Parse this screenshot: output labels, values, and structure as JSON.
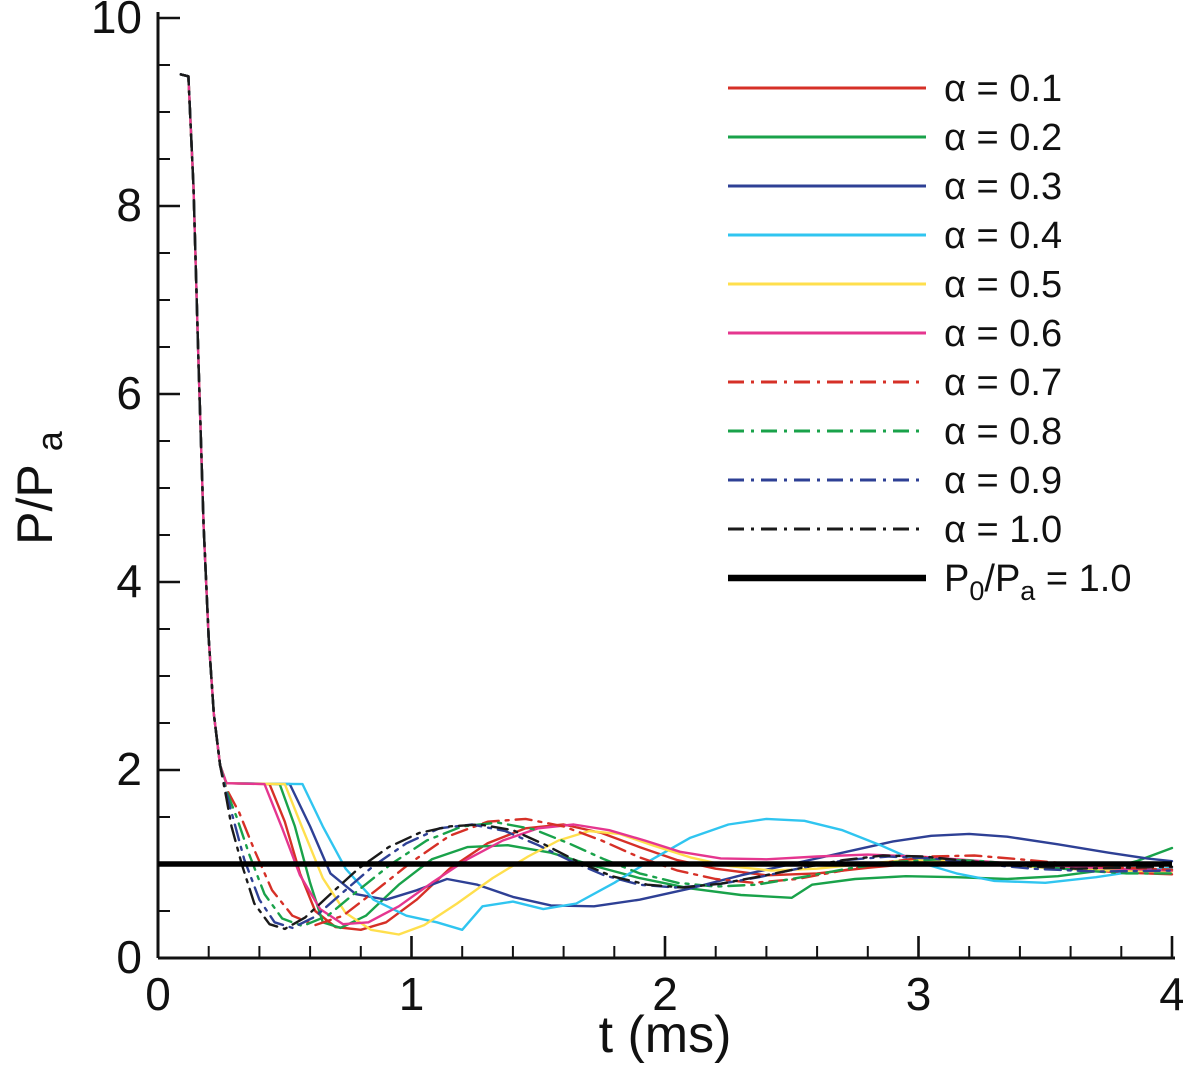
{
  "chart_data": {
    "type": "line",
    "xlabel": "t (ms)",
    "ylabel_main": "P/P",
    "ylabel_sub": "a",
    "xlim": [
      0,
      4
    ],
    "ylim": [
      0,
      10
    ],
    "xticks": [
      0,
      1,
      2,
      3,
      4
    ],
    "yticks": [
      0,
      2,
      4,
      6,
      8,
      10
    ],
    "x_minor_step": 0.2,
    "y_minor_step": 0.5,
    "grid": false,
    "legend_position": "top-right",
    "axis_color": "#111111",
    "initial_transient": [
      [
        0.09,
        9.4
      ],
      [
        0.12,
        9.38
      ],
      [
        0.14,
        8.2
      ],
      [
        0.16,
        6.3
      ],
      [
        0.18,
        4.6
      ],
      [
        0.2,
        3.4
      ],
      [
        0.22,
        2.6
      ],
      [
        0.245,
        2.05
      ]
    ],
    "series": [
      {
        "name": "α = 0.1",
        "color": "#d63027",
        "dash": false,
        "width": 2.4,
        "points": [
          [
            0.27,
            1.86
          ],
          [
            0.44,
            1.85
          ],
          [
            0.5,
            1.45
          ],
          [
            0.56,
            0.9
          ],
          [
            0.62,
            0.5
          ],
          [
            0.7,
            0.33
          ],
          [
            0.8,
            0.3
          ],
          [
            0.9,
            0.38
          ],
          [
            1.02,
            0.62
          ],
          [
            1.15,
            0.95
          ],
          [
            1.3,
            1.22
          ],
          [
            1.45,
            1.38
          ],
          [
            1.6,
            1.42
          ],
          [
            1.75,
            1.33
          ],
          [
            1.9,
            1.18
          ],
          [
            2.05,
            1.04
          ],
          [
            2.2,
            0.95
          ],
          [
            2.4,
            0.88
          ],
          [
            2.6,
            0.9
          ],
          [
            2.8,
            0.96
          ],
          [
            3.0,
            1.01
          ],
          [
            3.2,
            1.03
          ],
          [
            3.4,
            1.0
          ],
          [
            3.6,
            0.95
          ],
          [
            3.8,
            0.91
          ],
          [
            4.0,
            0.89
          ]
        ]
      },
      {
        "name": "α = 0.2",
        "color": "#19a24a",
        "dash": false,
        "width": 2.4,
        "points": [
          [
            0.27,
            1.86
          ],
          [
            0.48,
            1.85
          ],
          [
            0.54,
            1.4
          ],
          [
            0.6,
            0.8
          ],
          [
            0.65,
            0.38
          ],
          [
            0.72,
            0.32
          ],
          [
            0.82,
            0.45
          ],
          [
            0.95,
            0.78
          ],
          [
            1.08,
            1.05
          ],
          [
            1.22,
            1.18
          ],
          [
            1.38,
            1.2
          ],
          [
            1.55,
            1.12
          ],
          [
            1.72,
            0.98
          ],
          [
            1.9,
            0.85
          ],
          [
            2.1,
            0.74
          ],
          [
            2.3,
            0.67
          ],
          [
            2.5,
            0.64
          ],
          [
            2.58,
            0.78
          ],
          [
            2.75,
            0.84
          ],
          [
            2.95,
            0.87
          ],
          [
            3.15,
            0.86
          ],
          [
            3.35,
            0.84
          ],
          [
            3.55,
            0.87
          ],
          [
            3.72,
            0.93
          ],
          [
            3.86,
            1.03
          ],
          [
            4.0,
            1.17
          ]
        ]
      },
      {
        "name": "α = 0.3",
        "color": "#2e4095",
        "dash": false,
        "width": 2.4,
        "points": [
          [
            0.27,
            1.86
          ],
          [
            0.52,
            1.85
          ],
          [
            0.6,
            1.4
          ],
          [
            0.68,
            0.9
          ],
          [
            0.78,
            0.68
          ],
          [
            0.9,
            0.62
          ],
          [
            1.02,
            0.72
          ],
          [
            1.14,
            0.84
          ],
          [
            1.26,
            0.78
          ],
          [
            1.4,
            0.65
          ],
          [
            1.55,
            0.56
          ],
          [
            1.72,
            0.55
          ],
          [
            1.9,
            0.62
          ],
          [
            2.1,
            0.74
          ],
          [
            2.3,
            0.88
          ],
          [
            2.5,
            1.0
          ],
          [
            2.7,
            1.12
          ],
          [
            2.9,
            1.24
          ],
          [
            3.05,
            1.3
          ],
          [
            3.2,
            1.32
          ],
          [
            3.35,
            1.29
          ],
          [
            3.55,
            1.21
          ],
          [
            3.75,
            1.12
          ],
          [
            3.9,
            1.06
          ],
          [
            4.0,
            1.03
          ]
        ]
      },
      {
        "name": "α = 0.4",
        "color": "#30c5f0",
        "dash": false,
        "width": 2.4,
        "points": [
          [
            0.27,
            1.86
          ],
          [
            0.57,
            1.85
          ],
          [
            0.65,
            1.4
          ],
          [
            0.74,
            0.95
          ],
          [
            0.85,
            0.62
          ],
          [
            0.98,
            0.45
          ],
          [
            1.1,
            0.38
          ],
          [
            1.2,
            0.3
          ],
          [
            1.28,
            0.55
          ],
          [
            1.4,
            0.6
          ],
          [
            1.52,
            0.52
          ],
          [
            1.65,
            0.58
          ],
          [
            1.8,
            0.8
          ],
          [
            1.95,
            1.05
          ],
          [
            2.1,
            1.28
          ],
          [
            2.25,
            1.42
          ],
          [
            2.4,
            1.48
          ],
          [
            2.55,
            1.46
          ],
          [
            2.7,
            1.36
          ],
          [
            2.85,
            1.2
          ],
          [
            3.0,
            1.02
          ],
          [
            3.15,
            0.9
          ],
          [
            3.3,
            0.82
          ],
          [
            3.5,
            0.8
          ],
          [
            3.7,
            0.86
          ],
          [
            3.85,
            0.92
          ],
          [
            4.0,
            0.96
          ]
        ]
      },
      {
        "name": "α = 0.5",
        "color": "#ffdf4d",
        "dash": false,
        "width": 2.4,
        "points": [
          [
            0.27,
            1.86
          ],
          [
            0.5,
            1.85
          ],
          [
            0.57,
            1.38
          ],
          [
            0.65,
            0.85
          ],
          [
            0.74,
            0.48
          ],
          [
            0.84,
            0.3
          ],
          [
            0.95,
            0.25
          ],
          [
            1.05,
            0.35
          ],
          [
            1.18,
            0.58
          ],
          [
            1.32,
            0.85
          ],
          [
            1.46,
            1.08
          ],
          [
            1.58,
            1.25
          ],
          [
            1.7,
            1.35
          ],
          [
            1.82,
            1.32
          ],
          [
            1.95,
            1.2
          ],
          [
            2.1,
            1.07
          ],
          [
            2.25,
            0.98
          ],
          [
            2.42,
            0.93
          ],
          [
            2.6,
            0.95
          ],
          [
            2.78,
            1.0
          ],
          [
            2.95,
            1.04
          ],
          [
            3.12,
            1.04
          ],
          [
            3.3,
            1.0
          ],
          [
            3.5,
            0.96
          ],
          [
            3.75,
            0.93
          ],
          [
            4.0,
            0.92
          ]
        ]
      },
      {
        "name": "α = 0.6",
        "color": "#e5368f",
        "dash": false,
        "width": 2.4,
        "points": [
          [
            0.27,
            1.86
          ],
          [
            0.42,
            1.85
          ],
          [
            0.49,
            1.38
          ],
          [
            0.56,
            0.88
          ],
          [
            0.64,
            0.52
          ],
          [
            0.73,
            0.36
          ],
          [
            0.83,
            0.38
          ],
          [
            0.95,
            0.55
          ],
          [
            1.08,
            0.8
          ],
          [
            1.22,
            1.05
          ],
          [
            1.36,
            1.25
          ],
          [
            1.5,
            1.38
          ],
          [
            1.64,
            1.42
          ],
          [
            1.78,
            1.36
          ],
          [
            1.92,
            1.25
          ],
          [
            2.06,
            1.13
          ],
          [
            2.22,
            1.06
          ],
          [
            2.4,
            1.05
          ],
          [
            2.6,
            1.08
          ],
          [
            2.8,
            1.1
          ],
          [
            3.0,
            1.08
          ],
          [
            3.2,
            1.04
          ],
          [
            3.4,
            1.0
          ],
          [
            3.6,
            0.97
          ],
          [
            3.8,
            0.95
          ],
          [
            4.0,
            0.93
          ]
        ]
      },
      {
        "name": "α = 0.7",
        "color": "#d63027",
        "dash": true,
        "width": 2.4,
        "points": [
          [
            0.27,
            1.8
          ],
          [
            0.32,
            1.55
          ],
          [
            0.38,
            1.15
          ],
          [
            0.45,
            0.72
          ],
          [
            0.53,
            0.45
          ],
          [
            0.62,
            0.35
          ],
          [
            0.73,
            0.45
          ],
          [
            0.86,
            0.72
          ],
          [
            1.0,
            1.02
          ],
          [
            1.15,
            1.3
          ],
          [
            1.3,
            1.45
          ],
          [
            1.45,
            1.48
          ],
          [
            1.6,
            1.4
          ],
          [
            1.75,
            1.25
          ],
          [
            1.9,
            1.07
          ],
          [
            2.05,
            0.93
          ],
          [
            2.2,
            0.84
          ],
          [
            2.35,
            0.8
          ],
          [
            2.52,
            0.84
          ],
          [
            2.7,
            0.93
          ],
          [
            2.88,
            1.02
          ],
          [
            3.05,
            1.08
          ],
          [
            3.22,
            1.09
          ],
          [
            3.4,
            1.05
          ],
          [
            3.6,
            1.0
          ],
          [
            3.8,
            0.96
          ],
          [
            4.0,
            0.94
          ]
        ]
      },
      {
        "name": "α = 0.8",
        "color": "#19a24a",
        "dash": true,
        "width": 2.4,
        "points": [
          [
            0.27,
            1.78
          ],
          [
            0.31,
            1.5
          ],
          [
            0.36,
            1.1
          ],
          [
            0.42,
            0.68
          ],
          [
            0.49,
            0.42
          ],
          [
            0.57,
            0.34
          ],
          [
            0.67,
            0.45
          ],
          [
            0.79,
            0.72
          ],
          [
            0.92,
            1.0
          ],
          [
            1.06,
            1.25
          ],
          [
            1.2,
            1.4
          ],
          [
            1.34,
            1.44
          ],
          [
            1.48,
            1.37
          ],
          [
            1.62,
            1.22
          ],
          [
            1.76,
            1.05
          ],
          [
            1.9,
            0.9
          ],
          [
            2.05,
            0.8
          ],
          [
            2.2,
            0.76
          ],
          [
            2.36,
            0.78
          ],
          [
            2.54,
            0.86
          ],
          [
            2.72,
            0.95
          ],
          [
            2.9,
            1.02
          ],
          [
            3.08,
            1.05
          ],
          [
            3.26,
            1.03
          ],
          [
            3.45,
            0.98
          ],
          [
            3.65,
            0.93
          ],
          [
            3.82,
            0.9
          ],
          [
            4.0,
            0.9
          ]
        ]
      },
      {
        "name": "α = 0.9",
        "color": "#2e4095",
        "dash": true,
        "width": 2.4,
        "points": [
          [
            0.27,
            1.75
          ],
          [
            0.3,
            1.45
          ],
          [
            0.34,
            1.05
          ],
          [
            0.4,
            0.62
          ],
          [
            0.46,
            0.38
          ],
          [
            0.53,
            0.32
          ],
          [
            0.62,
            0.44
          ],
          [
            0.73,
            0.7
          ],
          [
            0.85,
            0.98
          ],
          [
            0.98,
            1.22
          ],
          [
            1.11,
            1.38
          ],
          [
            1.24,
            1.42
          ],
          [
            1.37,
            1.35
          ],
          [
            1.5,
            1.2
          ],
          [
            1.63,
            1.03
          ],
          [
            1.76,
            0.88
          ],
          [
            1.9,
            0.78
          ],
          [
            2.04,
            0.75
          ],
          [
            2.2,
            0.78
          ],
          [
            2.37,
            0.86
          ],
          [
            2.54,
            0.96
          ],
          [
            2.71,
            1.04
          ],
          [
            2.88,
            1.08
          ],
          [
            3.05,
            1.06
          ],
          [
            3.25,
            1.0
          ],
          [
            3.45,
            0.95
          ],
          [
            3.7,
            0.92
          ],
          [
            4.0,
            0.93
          ]
        ]
      },
      {
        "name": "α = 1.0",
        "color": "#1a1a1a",
        "dash": true,
        "width": 2.4,
        "points": [
          [
            0.27,
            1.7
          ],
          [
            0.29,
            1.4
          ],
          [
            0.33,
            1.0
          ],
          [
            0.38,
            0.58
          ],
          [
            0.44,
            0.36
          ],
          [
            0.5,
            0.31
          ],
          [
            0.58,
            0.43
          ],
          [
            0.68,
            0.68
          ],
          [
            0.79,
            0.95
          ],
          [
            0.91,
            1.18
          ],
          [
            1.03,
            1.33
          ],
          [
            1.15,
            1.4
          ],
          [
            1.27,
            1.42
          ],
          [
            1.4,
            1.36
          ],
          [
            1.53,
            1.2
          ],
          [
            1.66,
            1.02
          ],
          [
            1.79,
            0.87
          ],
          [
            1.93,
            0.78
          ],
          [
            2.07,
            0.75
          ],
          [
            2.22,
            0.79
          ],
          [
            2.38,
            0.87
          ],
          [
            2.54,
            0.96
          ],
          [
            2.7,
            1.04
          ],
          [
            2.86,
            1.09
          ],
          [
            3.02,
            1.08
          ],
          [
            3.2,
            1.03
          ],
          [
            3.4,
            0.98
          ],
          [
            3.62,
            0.95
          ],
          [
            4.0,
            0.97
          ]
        ]
      }
    ],
    "ref_line": {
      "value": 1.0,
      "color": "#000000",
      "width": 5.5,
      "label_parts": [
        {
          "t": "P"
        },
        {
          "t": "0",
          "sub": true
        },
        {
          "t": "/P"
        },
        {
          "t": "a",
          "sub": true
        },
        {
          "t": " = 1.0"
        }
      ]
    }
  }
}
